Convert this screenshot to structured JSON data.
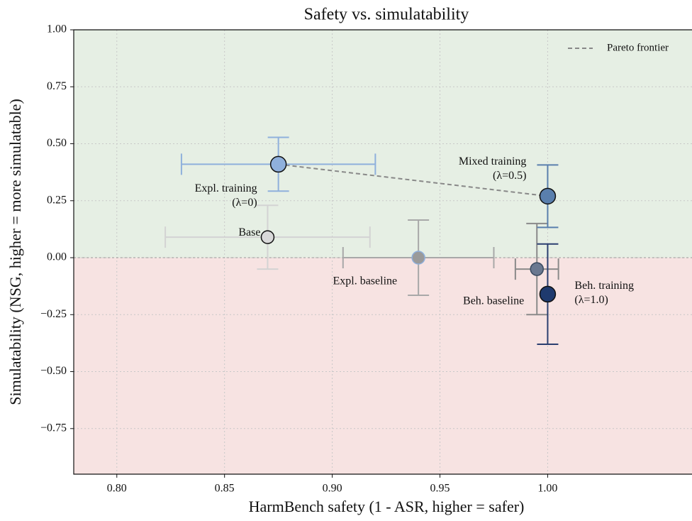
{
  "chart_data": {
    "type": "errorbar-scatter",
    "title": "Safety vs. simulatability",
    "x_label": "HarmBench safety  (1 - ASR, higher = safer)",
    "y_label": "Simulatability  (NSG, higher = more simulatable)",
    "xlim": [
      0.78,
      1.067
    ],
    "ylim": [
      -0.95,
      1.0
    ],
    "xticks": [
      {
        "value": 0.8,
        "label": "0.80"
      },
      0.85,
      {
        "value": 0.9,
        "label": "0.90"
      },
      0.95,
      {
        "value": 1.0,
        "label": "1.00"
      }
    ],
    "yticks": [
      {
        "value": -0.75,
        "label": "−0.75"
      },
      {
        "value": -0.5,
        "label": "−0.50"
      },
      {
        "value": -0.25,
        "label": "−0.25"
      },
      {
        "value": 0,
        "label": "0.00"
      },
      0.25,
      {
        "value": 0.5,
        "label": "0.50"
      },
      0.75,
      {
        "value": 1.0,
        "label": "1.00"
      }
    ],
    "grid": true,
    "regions": {
      "above_zero_color": "#e6efe4",
      "below_zero_color": "#f7e3e2"
    },
    "points": [
      {
        "label": [
          "Base"
        ],
        "x": 0.87,
        "y": 0.09,
        "xerr": 0.0475,
        "yerr": 0.14,
        "color": "#d9d9d9",
        "edge": "#111111",
        "bar_color": "#d3d3d3"
      },
      {
        "label": [
          "Expl. baseline"
        ],
        "x": 0.94,
        "y": 0,
        "xerr": 0.035,
        "yerr": 0.165,
        "color": "#9a9a9a",
        "edge": "#8fb0dc",
        "bar_color": "#a8a8a8"
      },
      {
        "label": [
          "Beh. baseline"
        ],
        "x": 0.995,
        "y": -0.05,
        "xerr": 0.01,
        "yerr": 0.2,
        "color": "#6a7890",
        "edge": "#3a4a60",
        "bar_color": "#8a8a8a"
      },
      {
        "label": [
          "Expl. training",
          "(λ=0)"
        ],
        "x": 0.875,
        "y": 0.41,
        "xerr": 0.045,
        "yerr": 0.118,
        "color": "#8fb0dc",
        "edge": "#111111",
        "bar_color": "#8fb0dc"
      },
      {
        "label": [
          "Mixed training",
          "(λ=0.5)"
        ],
        "x": 1.0,
        "y": 0.27,
        "xerr": null,
        "yerr": 0.137,
        "color": "#5a7fad",
        "edge": "#111111",
        "bar_color": "#5a7fad"
      },
      {
        "label": [
          "Beh. training",
          "(λ=1.0)"
        ],
        "x": 1.0,
        "y": -0.16,
        "xerr": null,
        "yerr": 0.22,
        "color": "#1f3a6e",
        "edge": "#111111",
        "bar_color": "#2b3f70"
      }
    ],
    "pareto": {
      "name": "Pareto frontier",
      "x": [
        0.875,
        1.0
      ],
      "y": [
        0.41,
        0.27
      ],
      "color": "#888888"
    },
    "legend": "upper right"
  }
}
